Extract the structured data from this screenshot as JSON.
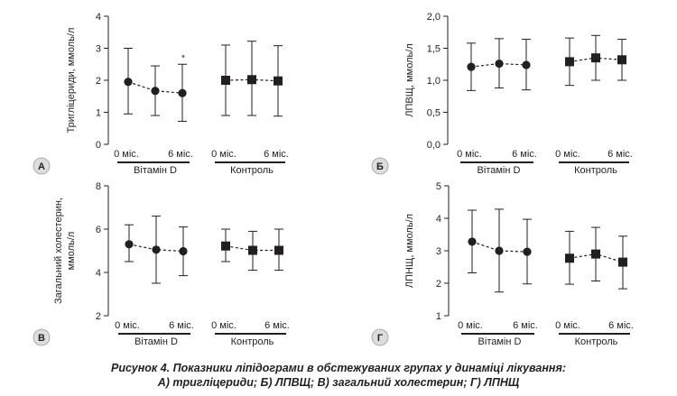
{
  "chart_data": [
    {
      "panel_letter": "А",
      "type": "scatter",
      "ylabel": "Тригліцериди, ммоль/л",
      "ylim": [
        0,
        4
      ],
      "yticks": [
        "0",
        "1",
        "2",
        "3",
        "4"
      ],
      "x_ticks": [
        "0 міс.",
        "6 міс.",
        "0 міс.",
        "6 міс."
      ],
      "groups": [
        "Вітамін D",
        "Контроль"
      ],
      "series": [
        {
          "marker": "circle",
          "values": [
            1.95,
            1.67,
            1.6
          ],
          "upper": [
            3.0,
            2.45,
            2.5
          ],
          "lower": [
            0.95,
            0.9,
            0.72
          ],
          "annotations": [
            "",
            "",
            "*"
          ]
        },
        {
          "marker": "square",
          "values": [
            2.0,
            2.02,
            1.98
          ],
          "upper": [
            3.1,
            3.22,
            3.08
          ],
          "lower": [
            0.9,
            0.9,
            0.88
          ],
          "annotations": [
            "",
            "",
            ""
          ]
        }
      ]
    },
    {
      "panel_letter": "Б",
      "type": "scatter",
      "ylabel": "ЛПВЩ, ммоль/л",
      "ylim": [
        0,
        2
      ],
      "yticks": [
        "0,0",
        "0,5",
        "1,0",
        "1,5",
        "2,0"
      ],
      "x_ticks": [
        "0 міс.",
        "6 міс.",
        "0 міс.",
        "6 міс."
      ],
      "groups": [
        "Вітамін D",
        "Контроль"
      ],
      "series": [
        {
          "marker": "circle",
          "values": [
            1.21,
            1.26,
            1.24
          ],
          "upper": [
            1.58,
            1.65,
            1.64
          ],
          "lower": [
            0.84,
            0.88,
            0.85
          ],
          "annotations": [
            "",
            "",
            ""
          ]
        },
        {
          "marker": "square",
          "values": [
            1.29,
            1.35,
            1.32
          ],
          "upper": [
            1.66,
            1.7,
            1.64
          ],
          "lower": [
            0.92,
            1.0,
            1.0
          ],
          "annotations": [
            "",
            "",
            ""
          ]
        }
      ]
    },
    {
      "panel_letter": "В",
      "type": "scatter",
      "ylabel_lines": [
        "Загальний холестерин,",
        "ммоль/л"
      ],
      "ylim": [
        2,
        8
      ],
      "yticks": [
        "2",
        "4",
        "6",
        "8"
      ],
      "x_ticks": [
        "0 міс.",
        "6 міс.",
        "0 міс.",
        "6 міс."
      ],
      "groups": [
        "Вітамін D",
        "Контроль"
      ],
      "series": [
        {
          "marker": "circle",
          "values": [
            5.3,
            5.05,
            4.98
          ],
          "upper": [
            6.2,
            6.6,
            6.1
          ],
          "lower": [
            4.5,
            3.5,
            3.85
          ],
          "annotations": [
            "",
            "",
            ""
          ]
        },
        {
          "marker": "square",
          "values": [
            5.22,
            5.02,
            5.02
          ],
          "upper": [
            6.0,
            5.9,
            6.0
          ],
          "lower": [
            4.5,
            4.1,
            4.1
          ],
          "annotations": [
            "",
            "",
            ""
          ]
        }
      ]
    },
    {
      "panel_letter": "Г",
      "type": "scatter",
      "ylabel": "ЛПНЩ, ммоль/л",
      "ylim": [
        1,
        5
      ],
      "yticks": [
        "1",
        "2",
        "3",
        "4",
        "5"
      ],
      "x_ticks": [
        "0 міс.",
        "6 міс.",
        "0 міс.",
        "6 міс."
      ],
      "groups": [
        "Вітамін D",
        "Контроль"
      ],
      "series": [
        {
          "marker": "circle",
          "values": [
            3.28,
            3.0,
            2.97
          ],
          "upper": [
            4.25,
            4.28,
            3.97
          ],
          "lower": [
            2.32,
            1.73,
            1.98
          ],
          "annotations": [
            "",
            "",
            ""
          ]
        },
        {
          "marker": "square",
          "values": [
            2.77,
            2.9,
            2.65
          ],
          "upper": [
            3.6,
            3.72,
            3.45
          ],
          "lower": [
            1.97,
            2.07,
            1.83
          ],
          "annotations": [
            "",
            "",
            ""
          ]
        }
      ]
    }
  ],
  "caption": {
    "line1": "Рисунок 4. Показники ліпідограми в обстежуваних групах у динаміці лікування:",
    "line2": "А) тригліцериди; Б) ЛПВЩ; В) загальний холестерин; Г) ЛПНЩ"
  }
}
